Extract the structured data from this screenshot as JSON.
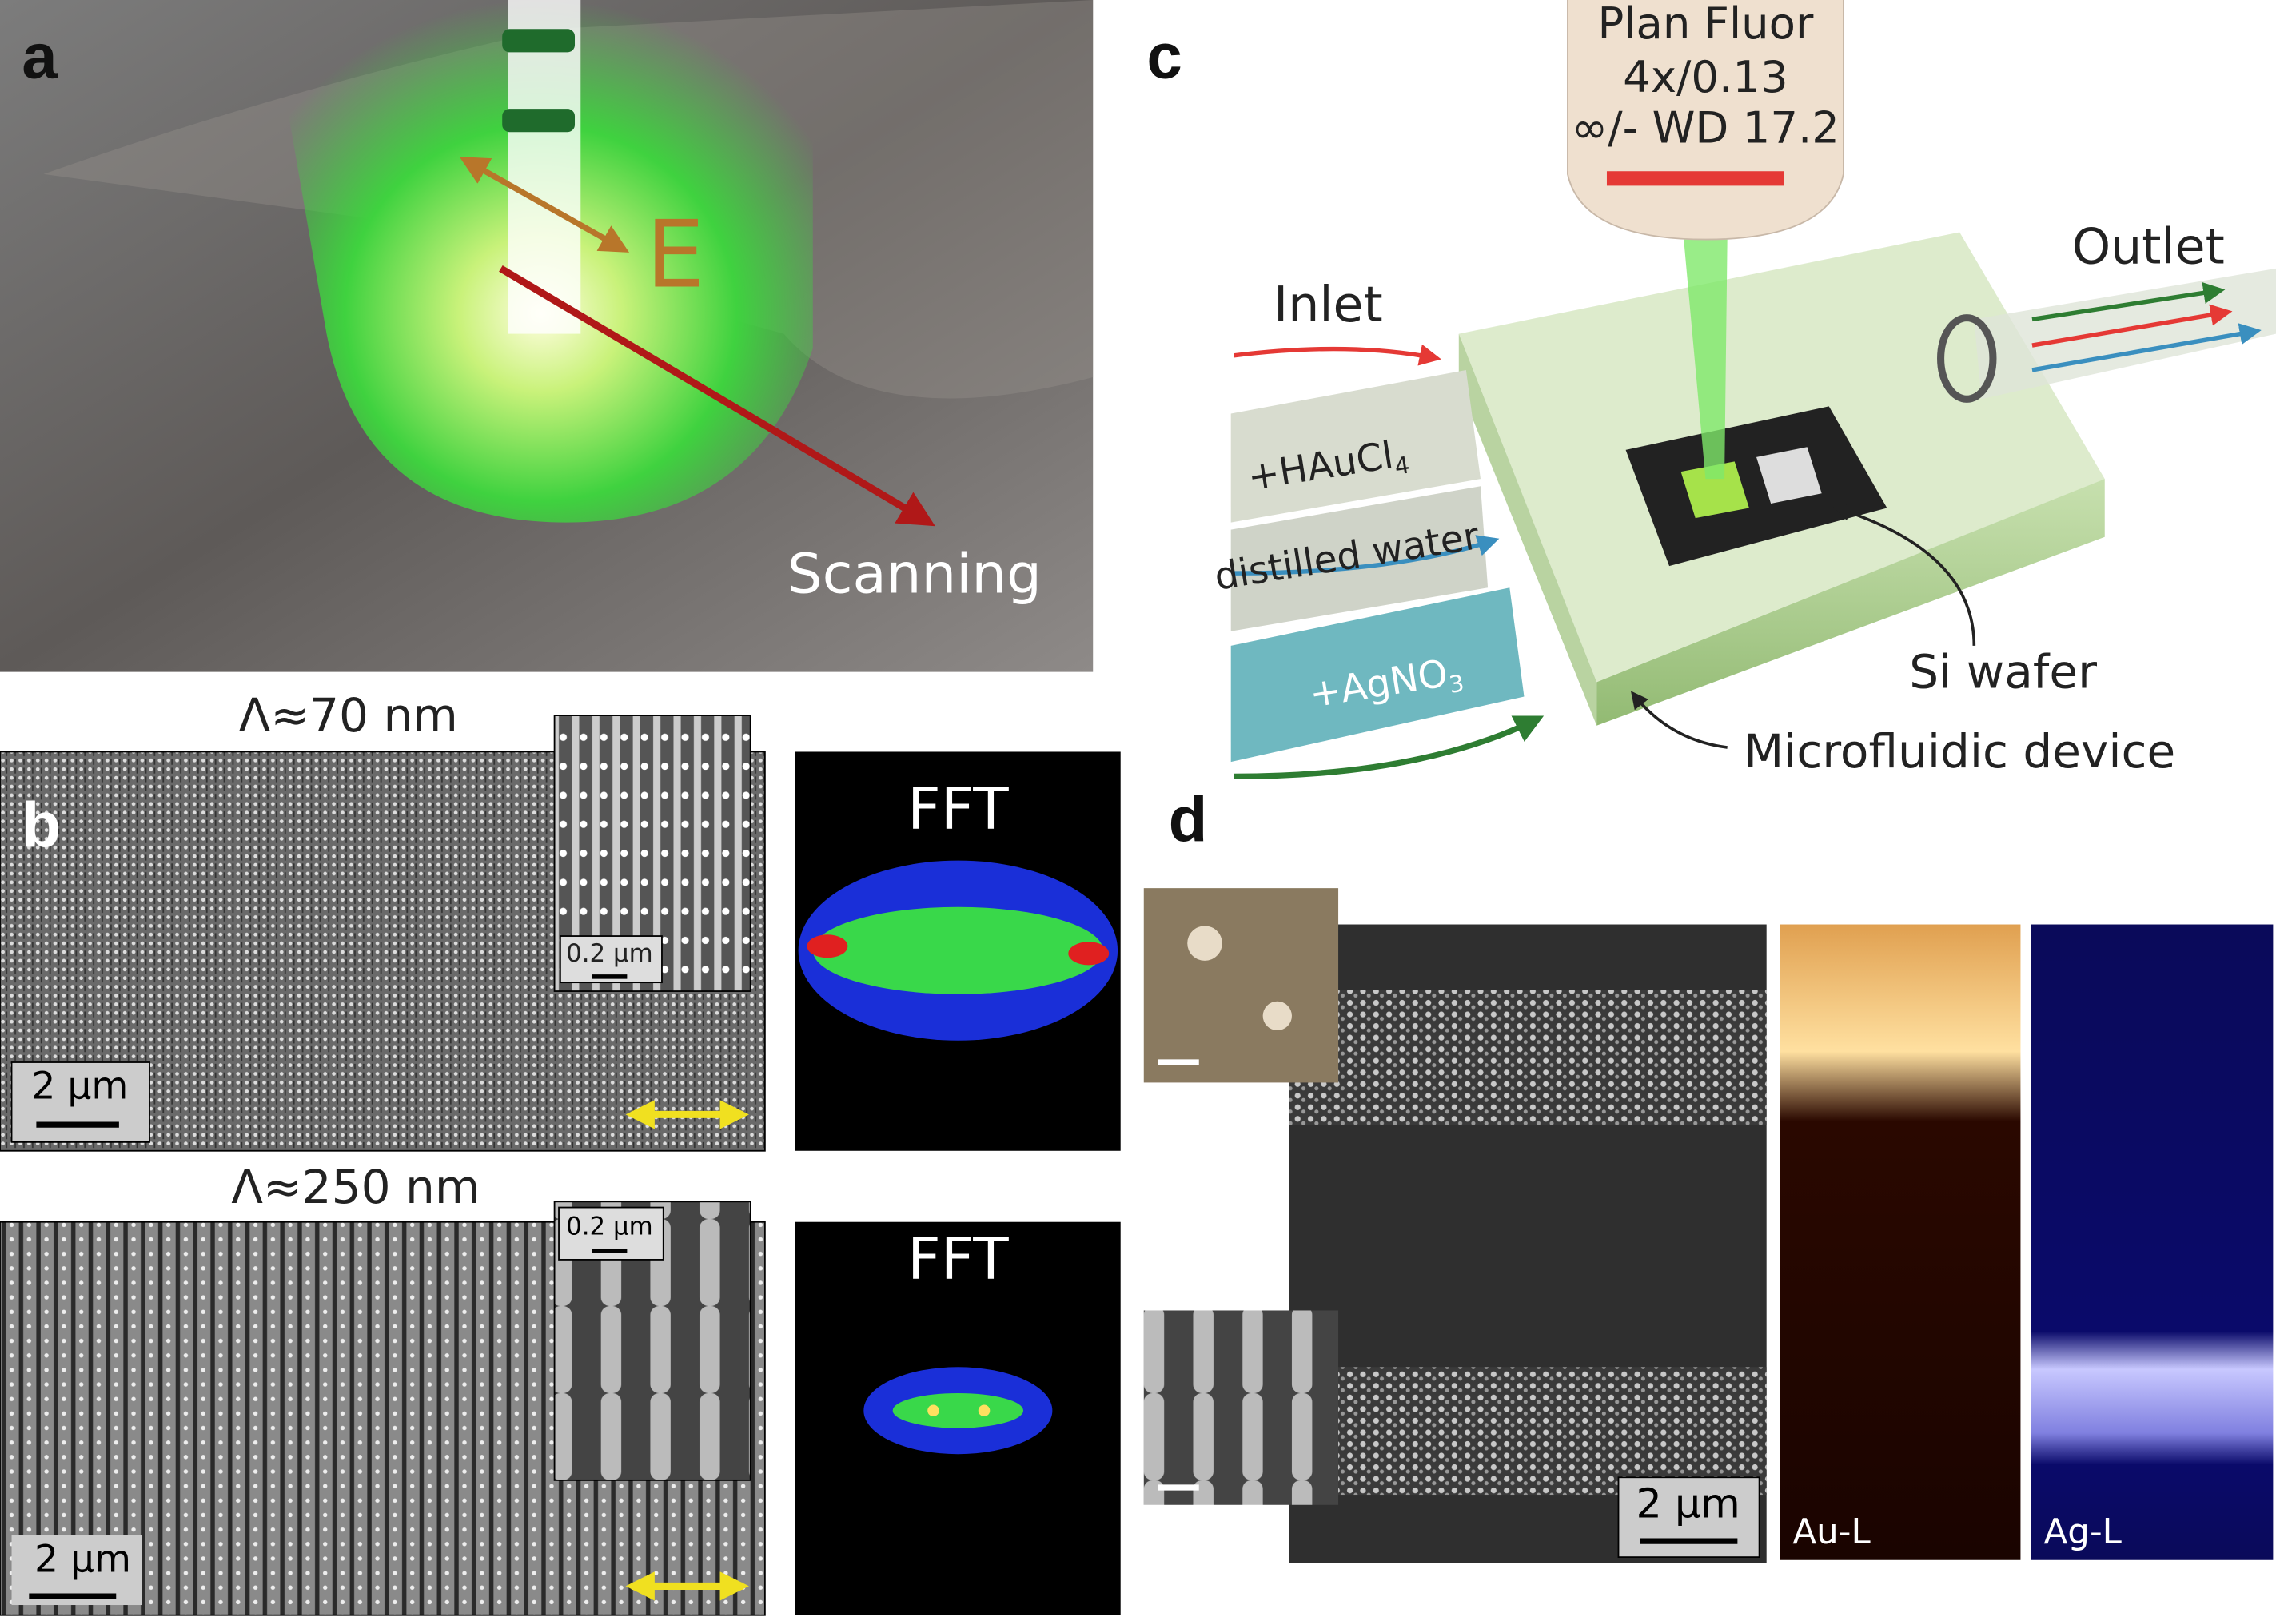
{
  "panel_a": {
    "label": "a",
    "field": "E",
    "direction": "Scanning"
  },
  "panel_b": {
    "label": "b",
    "top": {
      "period": "Λ≈70 nm",
      "inset_scale": "0.2 µm",
      "scale": "2 µm",
      "fft": "FFT"
    },
    "bottom": {
      "period": "Λ≈250 nm",
      "inset_scale": "0.2 µm",
      "scale": "2 µm",
      "fft": "FFT"
    }
  },
  "panel_c": {
    "label": "c",
    "objective": [
      "Plan Fluor",
      "4x/0.13",
      "∞/- WD 17.2"
    ],
    "inlet": "Inlet",
    "outlet": "Outlet",
    "tubes": [
      {
        "text": "+HAuCl",
        "sub": "4"
      },
      {
        "text": "distilled water"
      },
      {
        "text": "+AgNO",
        "sub": "3"
      }
    ],
    "wafer": "Si wafer",
    "device": "Microfluidic device"
  },
  "panel_d": {
    "label": "d",
    "scale": "2 µm",
    "maps": [
      "Au-L",
      "Ag-L"
    ]
  }
}
